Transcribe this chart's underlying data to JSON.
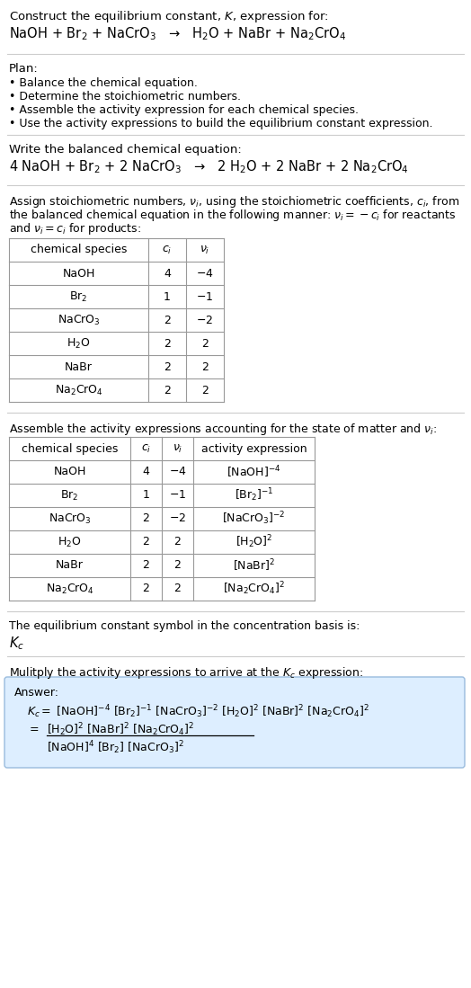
{
  "bg_color": "#ffffff",
  "text_color": "#000000",
  "table_border_color": "#999999",
  "answer_box_color": "#ddeeff",
  "answer_box_border": "#99bbdd",
  "section_title1": "Construct the equilibrium constant, $K$, expression for:",
  "reaction_unbalanced": "NaOH + Br$_2$ + NaCrO$_3$   →   H$_2$O + NaBr + Na$_2$CrO$_4$",
  "plan_title": "Plan:",
  "plan_items": [
    "• Balance the chemical equation.",
    "• Determine the stoichiometric numbers.",
    "• Assemble the activity expression for each chemical species.",
    "• Use the activity expressions to build the equilibrium constant expression."
  ],
  "balanced_title": "Write the balanced chemical equation:",
  "reaction_balanced": "4 NaOH + Br$_2$ + 2 NaCrO$_3$   →   2 H$_2$O + 2 NaBr + 2 Na$_2$CrO$_4$",
  "stoich_intro_lines": [
    "Assign stoichiometric numbers, $\\nu_i$, using the stoichiometric coefficients, $c_i$, from",
    "the balanced chemical equation in the following manner: $\\nu_i = -c_i$ for reactants",
    "and $\\nu_i = c_i$ for products:"
  ],
  "table1_headers": [
    "chemical species",
    "$c_i$",
    "$\\nu_i$"
  ],
  "table1_rows": [
    [
      "NaOH",
      "4",
      "$-4$"
    ],
    [
      "Br$_2$",
      "1",
      "$-1$"
    ],
    [
      "NaCrO$_3$",
      "2",
      "$-2$"
    ],
    [
      "H$_2$O",
      "2",
      "2"
    ],
    [
      "NaBr",
      "2",
      "2"
    ],
    [
      "Na$_2$CrO$_4$",
      "2",
      "2"
    ]
  ],
  "activity_intro": "Assemble the activity expressions accounting for the state of matter and $\\nu_i$:",
  "table2_headers": [
    "chemical species",
    "$c_i$",
    "$\\nu_i$",
    "activity expression"
  ],
  "table2_rows": [
    [
      "NaOH",
      "4",
      "$-4$",
      "[NaOH]$^{-4}$"
    ],
    [
      "Br$_2$",
      "1",
      "$-1$",
      "[Br$_2$]$^{-1}$"
    ],
    [
      "NaCrO$_3$",
      "2",
      "$-2$",
      "[NaCrO$_3$]$^{-2}$"
    ],
    [
      "H$_2$O",
      "2",
      "2",
      "[H$_2$O]$^2$"
    ],
    [
      "NaBr",
      "2",
      "2",
      "[NaBr]$^2$"
    ],
    [
      "Na$_2$CrO$_4$",
      "2",
      "2",
      "[Na$_2$CrO$_4$]$^2$"
    ]
  ],
  "kc_title": "The equilibrium constant symbol in the concentration basis is:",
  "kc_symbol": "$K_c$",
  "multiply_title": "Mulitply the activity expressions to arrive at the $K_c$ expression:",
  "answer_label": "Answer:",
  "kc_line1": "$K_c = $ [NaOH]$^{-4}$ [Br$_2$]$^{-1}$ [NaCrO$_3$]$^{-2}$ [H$_2$O]$^2$ [NaBr]$^2$ [Na$_2$CrO$_4$]$^2$",
  "kc_eq_sign": "$=$",
  "kc_line2_num": "[H$_2$O]$^2$ [NaBr]$^2$ [Na$_2$CrO$_4$]$^2$",
  "kc_line2_den": "[NaOH]$^4$ [Br$_2$] [NaCrO$_3$]$^2$",
  "separator_color": "#cccccc",
  "fs_title": 9.5,
  "fs_body": 9.0,
  "fs_reaction": 10.5
}
